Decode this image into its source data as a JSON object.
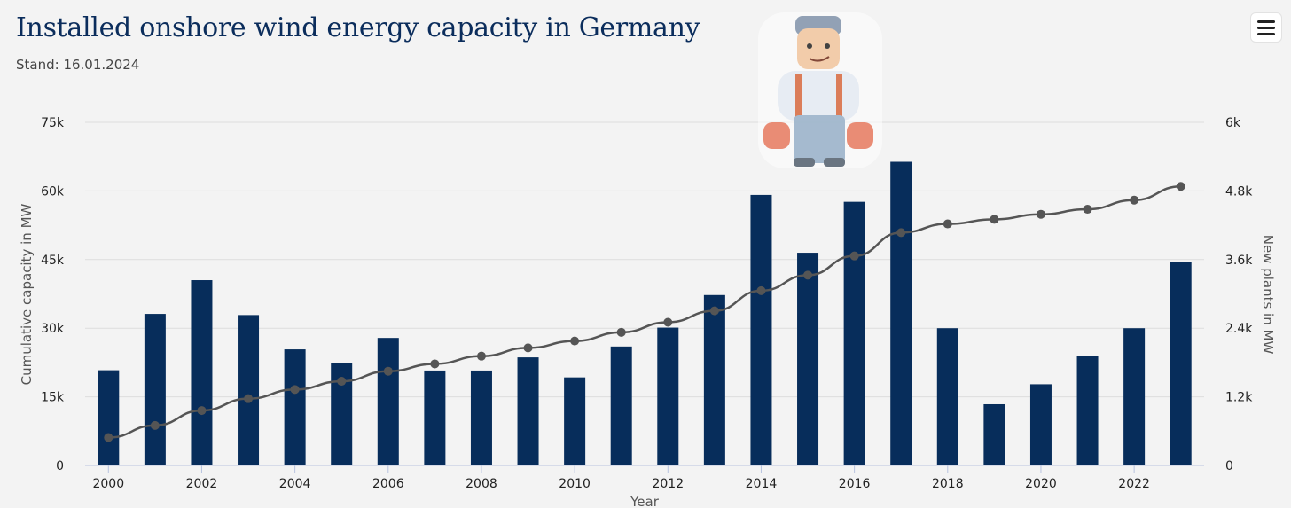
{
  "title": "Installed onshore wind energy capacity in Germany",
  "subtitle": "Stand: 16.01.2024",
  "menu_icon": "hamburger-menu-icon",
  "mascot_icon": "mechanic-mascot-icon",
  "colors": {
    "bar": "#072d5b",
    "line": "#555555",
    "grid": "#dddddd",
    "background": "#f3f3f3"
  },
  "chart_data": {
    "type": "bar",
    "title": "Installed onshore wind energy capacity in Germany",
    "subtitle": "Stand: 16.01.2024",
    "xlabel": "Year",
    "ylabel_left": "Cumulative capacity in MW",
    "ylabel_right": "New plants in MW",
    "categories": [
      "2000",
      "2001",
      "2002",
      "2003",
      "2004",
      "2005",
      "2006",
      "2007",
      "2008",
      "2009",
      "2010",
      "2011",
      "2012",
      "2013",
      "2014",
      "2015",
      "2016",
      "2017",
      "2018",
      "2019",
      "2020",
      "2021",
      "2022",
      "2023"
    ],
    "x_tick_labels": [
      "2000",
      "2002",
      "2004",
      "2006",
      "2008",
      "2010",
      "2012",
      "2014",
      "2016",
      "2018",
      "2020",
      "2022"
    ],
    "y_left_ticks": [
      "0",
      "15k",
      "30k",
      "45k",
      "60k",
      "75k"
    ],
    "y_right_ticks": [
      "0",
      "1.2k",
      "2.4k",
      "3.6k",
      "4.8k",
      "6k"
    ],
    "ylim_left": [
      0,
      75000
    ],
    "ylim_right": [
      0,
      6000
    ],
    "grid": true,
    "series": [
      {
        "name": "New plants in MW",
        "type": "bar",
        "axis": "right",
        "values": [
          1665,
          2650,
          3240,
          2630,
          2030,
          1790,
          2230,
          1660,
          1660,
          1890,
          1540,
          2080,
          2410,
          2980,
          4730,
          3720,
          4610,
          5310,
          2400,
          1070,
          1420,
          1920,
          2400,
          3560
        ]
      },
      {
        "name": "Cumulative capacity in MW",
        "type": "line",
        "axis": "left",
        "values": [
          6100,
          8750,
          12000,
          14600,
          16600,
          18400,
          20600,
          22200,
          23900,
          25700,
          27200,
          29100,
          31300,
          33800,
          38200,
          41600,
          45800,
          50900,
          52800,
          53800,
          54900,
          56000,
          58000,
          61000
        ]
      }
    ]
  }
}
